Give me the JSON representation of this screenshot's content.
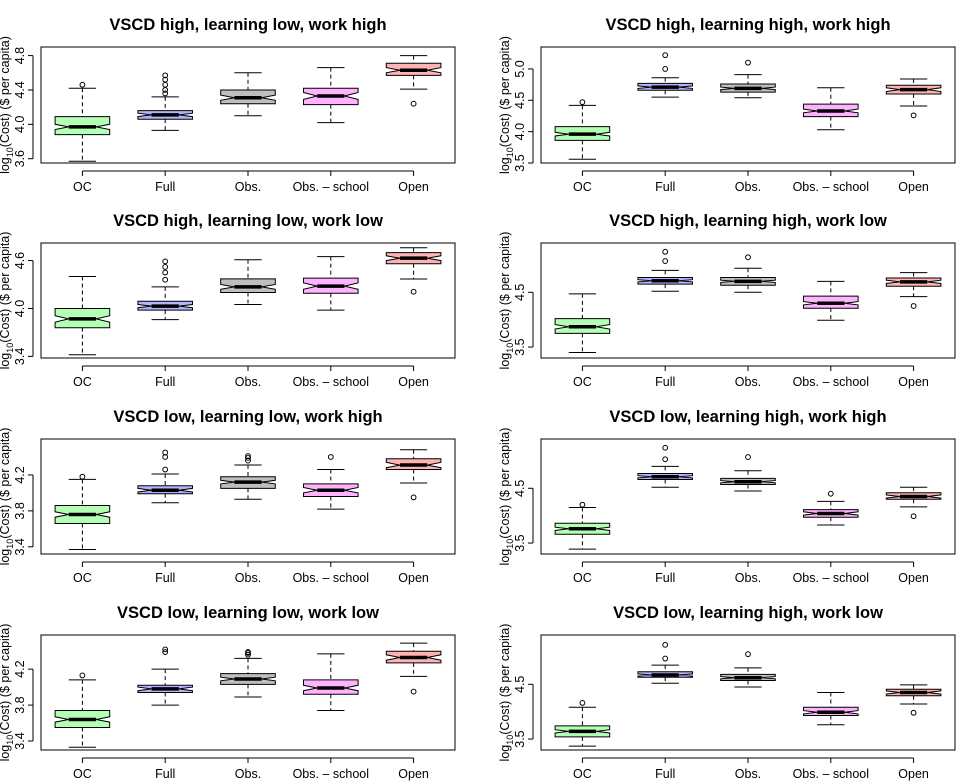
{
  "chart_data": [
    {
      "type": "box",
      "title": "VSCD high, learning low, work high",
      "ylabel_prefix": "log",
      "ylabel_sub": "10",
      "ylabel_suffix": "(Cost) ($ per capita)",
      "categories": [
        "OC",
        "Full",
        "Obs.",
        "Obs. – school",
        "Open"
      ],
      "colors": [
        "#b3ffb3",
        "#b3b3ff",
        "#bebebe",
        "#ffb3ff",
        "#ffb3b3"
      ],
      "notched": true,
      "ylim": [
        3.55,
        4.9
      ],
      "yticks": [
        3.6,
        4.0,
        4.4,
        4.8
      ],
      "yticklabels": [
        "3.6",
        "4.0",
        "4.4",
        "4.8"
      ],
      "boxes": [
        {
          "whislo": 3.57,
          "q1": 3.88,
          "med": 3.97,
          "q3": 4.09,
          "whishi": 4.42,
          "notch": [
            3.94,
            4.0
          ],
          "outliers": [
            4.46
          ]
        },
        {
          "whislo": 3.93,
          "q1": 4.06,
          "med": 4.11,
          "q3": 4.16,
          "whishi": 4.32,
          "notch": [
            4.09,
            4.13
          ],
          "outliers": [
            4.36,
            4.4,
            4.46,
            4.52,
            4.57
          ]
        },
        {
          "whislo": 4.1,
          "q1": 4.24,
          "med": 4.31,
          "q3": 4.4,
          "whishi": 4.6,
          "notch": [
            4.28,
            4.34
          ],
          "outliers": []
        },
        {
          "whislo": 4.02,
          "q1": 4.23,
          "med": 4.33,
          "q3": 4.42,
          "whishi": 4.66,
          "notch": [
            4.29,
            4.37
          ],
          "outliers": []
        },
        {
          "whislo": 4.41,
          "q1": 4.57,
          "med": 4.63,
          "q3": 4.71,
          "whishi": 4.8,
          "notch": [
            4.6,
            4.66
          ],
          "outliers": [
            4.24
          ]
        }
      ]
    },
    {
      "type": "box",
      "title": "VSCD high, learning high, work high",
      "ylabel_prefix": "log",
      "ylabel_sub": "10",
      "ylabel_suffix": "(Cost) ($ per capita)",
      "categories": [
        "OC",
        "Full",
        "Obs.",
        "Obs. – school",
        "Open"
      ],
      "colors": [
        "#b3ffb3",
        "#b3b3ff",
        "#bebebe",
        "#ffb3ff",
        "#ffb3b3"
      ],
      "notched": true,
      "ylim": [
        3.5,
        5.35
      ],
      "yticks": [
        3.5,
        4.0,
        4.5,
        5.0
      ],
      "yticklabels": [
        "3.5",
        "4.0",
        "4.5",
        "5.0"
      ],
      "boxes": [
        {
          "whislo": 3.56,
          "q1": 3.86,
          "med": 3.96,
          "q3": 4.08,
          "whishi": 4.42,
          "notch": [
            3.93,
            3.99
          ],
          "outliers": [
            4.47
          ]
        },
        {
          "whislo": 4.55,
          "q1": 4.66,
          "med": 4.71,
          "q3": 4.77,
          "whishi": 4.86,
          "notch": [
            4.69,
            4.73
          ],
          "outliers": [
            5.0,
            5.22
          ]
        },
        {
          "whislo": 4.54,
          "q1": 4.63,
          "med": 4.69,
          "q3": 4.76,
          "whishi": 4.91,
          "notch": [
            4.67,
            4.71
          ],
          "outliers": [
            5.1
          ]
        },
        {
          "whislo": 4.03,
          "q1": 4.24,
          "med": 4.33,
          "q3": 4.44,
          "whishi": 4.7,
          "notch": [
            4.3,
            4.36
          ],
          "outliers": []
        },
        {
          "whislo": 4.41,
          "q1": 4.6,
          "med": 4.67,
          "q3": 4.74,
          "whishi": 4.84,
          "notch": [
            4.64,
            4.7
          ],
          "outliers": [
            4.26
          ]
        }
      ]
    },
    {
      "type": "box",
      "title": "VSCD high, learning low, work low",
      "ylabel_prefix": "log",
      "ylabel_sub": "10",
      "ylabel_suffix": "(Cost) ($ per capita)",
      "categories": [
        "OC",
        "Full",
        "Obs.",
        "Obs. – school",
        "Open"
      ],
      "colors": [
        "#b3ffb3",
        "#b3b3ff",
        "#bebebe",
        "#ffb3ff",
        "#ffb3b3"
      ],
      "notched": true,
      "ylim": [
        3.38,
        4.82
      ],
      "yticks": [
        3.4,
        4.0,
        4.6
      ],
      "yticklabels": [
        "3.4",
        "4.0",
        "4.6"
      ],
      "boxes": [
        {
          "whislo": 3.42,
          "q1": 3.76,
          "med": 3.87,
          "q3": 4.0,
          "whishi": 4.4,
          "notch": [
            3.83,
            3.91
          ],
          "outliers": []
        },
        {
          "whislo": 3.86,
          "q1": 3.98,
          "med": 4.03,
          "q3": 4.09,
          "whishi": 4.27,
          "notch": [
            4.01,
            4.05
          ],
          "outliers": [
            4.36,
            4.45,
            4.52,
            4.59
          ]
        },
        {
          "whislo": 4.05,
          "q1": 4.2,
          "med": 4.27,
          "q3": 4.37,
          "whishi": 4.61,
          "notch": [
            4.24,
            4.3
          ],
          "outliers": []
        },
        {
          "whislo": 3.98,
          "q1": 4.19,
          "med": 4.28,
          "q3": 4.38,
          "whishi": 4.65,
          "notch": [
            4.24,
            4.32
          ],
          "outliers": []
        },
        {
          "whislo": 4.37,
          "q1": 4.56,
          "med": 4.63,
          "q3": 4.7,
          "whishi": 4.76,
          "notch": [
            4.6,
            4.66
          ],
          "outliers": [
            4.21
          ]
        }
      ]
    },
    {
      "type": "box",
      "title": "VSCD high, learning high, work low",
      "ylabel_prefix": "log",
      "ylabel_sub": "10",
      "ylabel_suffix": "(Cost) ($ per capita)",
      "categories": [
        "OC",
        "Full",
        "Obs.",
        "Obs. – school",
        "Open"
      ],
      "colors": [
        "#b3ffb3",
        "#b3b3ff",
        "#bebebe",
        "#ffb3ff",
        "#ffb3b3"
      ],
      "notched": true,
      "ylim": [
        3.3,
        5.4
      ],
      "yticks": [
        3.5,
        4.5
      ],
      "yticklabels": [
        "3.5",
        "4.5"
      ],
      "boxes": [
        {
          "whislo": 3.4,
          "q1": 3.75,
          "med": 3.87,
          "q3": 4.02,
          "whishi": 4.47,
          "notch": [
            3.83,
            3.91
          ],
          "outliers": []
        },
        {
          "whislo": 4.52,
          "q1": 4.65,
          "med": 4.71,
          "q3": 4.77,
          "whishi": 4.9,
          "notch": [
            4.69,
            4.73
          ],
          "outliers": [
            5.07,
            5.24
          ]
        },
        {
          "whislo": 4.5,
          "q1": 4.63,
          "med": 4.7,
          "q3": 4.77,
          "whishi": 4.94,
          "notch": [
            4.68,
            4.72
          ],
          "outliers": [
            5.14
          ]
        },
        {
          "whislo": 3.99,
          "q1": 4.21,
          "med": 4.3,
          "q3": 4.43,
          "whishi": 4.7,
          "notch": [
            4.27,
            4.33
          ],
          "outliers": []
        },
        {
          "whislo": 4.42,
          "q1": 4.61,
          "med": 4.69,
          "q3": 4.76,
          "whishi": 4.86,
          "notch": [
            4.66,
            4.72
          ],
          "outliers": [
            4.25
          ]
        }
      ]
    },
    {
      "type": "box",
      "title": "VSCD low, learning low, work high",
      "ylabel_prefix": "log",
      "ylabel_sub": "10",
      "ylabel_suffix": "(Cost) ($ per capita)",
      "categories": [
        "OC",
        "Full",
        "Obs.",
        "Obs. – school",
        "Open"
      ],
      "colors": [
        "#b3ffb3",
        "#b3b3ff",
        "#bebebe",
        "#ffb3ff",
        "#ffb3b3"
      ],
      "notched": true,
      "ylim": [
        3.32,
        4.6
      ],
      "yticks": [
        3.4,
        3.8,
        4.2
      ],
      "yticklabels": [
        "3.4",
        "3.8",
        "4.2"
      ],
      "boxes": [
        {
          "whislo": 3.37,
          "q1": 3.66,
          "med": 3.76,
          "q3": 3.86,
          "whishi": 4.15,
          "notch": [
            3.73,
            3.79
          ],
          "outliers": [
            4.18
          ]
        },
        {
          "whislo": 3.89,
          "q1": 3.99,
          "med": 4.03,
          "q3": 4.08,
          "whishi": 4.21,
          "notch": [
            4.01,
            4.05
          ],
          "outliers": [
            4.26,
            4.4,
            4.45
          ]
        },
        {
          "whislo": 3.93,
          "q1": 4.05,
          "med": 4.12,
          "q3": 4.18,
          "whishi": 4.31,
          "notch": [
            4.1,
            4.14
          ],
          "outliers": [
            4.36,
            4.39,
            4.41
          ]
        },
        {
          "whislo": 3.82,
          "q1": 3.96,
          "med": 4.03,
          "q3": 4.1,
          "whishi": 4.26,
          "notch": [
            4.0,
            4.06
          ],
          "outliers": [
            4.4
          ]
        },
        {
          "whislo": 4.11,
          "q1": 4.26,
          "med": 4.31,
          "q3": 4.38,
          "whishi": 4.48,
          "notch": [
            4.28,
            4.34
          ],
          "outliers": [
            3.95
          ]
        }
      ]
    },
    {
      "type": "box",
      "title": "VSCD low, learning high, work high",
      "ylabel_prefix": "log",
      "ylabel_sub": "10",
      "ylabel_suffix": "(Cost) ($ per capita)",
      "categories": [
        "OC",
        "Full",
        "Obs.",
        "Obs. – school",
        "Open"
      ],
      "colors": [
        "#b3ffb3",
        "#b3b3ff",
        "#bebebe",
        "#ffb3ff",
        "#ffb3b3"
      ],
      "notched": true,
      "ylim": [
        3.3,
        5.4
      ],
      "yticks": [
        3.5,
        4.5
      ],
      "yticklabels": [
        "3.5",
        "4.5"
      ],
      "boxes": [
        {
          "whislo": 3.39,
          "q1": 3.66,
          "med": 3.76,
          "q3": 3.86,
          "whishi": 4.15,
          "notch": [
            3.73,
            3.79
          ],
          "outliers": [
            4.2
          ]
        },
        {
          "whislo": 4.52,
          "q1": 4.66,
          "med": 4.71,
          "q3": 4.77,
          "whishi": 4.9,
          "notch": [
            4.69,
            4.73
          ],
          "outliers": [
            5.03,
            5.24
          ]
        },
        {
          "whislo": 4.45,
          "q1": 4.57,
          "med": 4.62,
          "q3": 4.68,
          "whishi": 4.82,
          "notch": [
            4.6,
            4.64
          ],
          "outliers": [
            5.07
          ]
        },
        {
          "whislo": 3.83,
          "q1": 3.97,
          "med": 4.04,
          "q3": 4.11,
          "whishi": 4.26,
          "notch": [
            4.01,
            4.07
          ],
          "outliers": [
            4.4
          ]
        },
        {
          "whislo": 4.16,
          "q1": 4.3,
          "med": 4.35,
          "q3": 4.42,
          "whishi": 4.52,
          "notch": [
            4.32,
            4.38
          ],
          "outliers": [
            3.99
          ]
        }
      ]
    },
    {
      "type": "box",
      "title": "VSCD low, learning low, work low",
      "ylabel_prefix": "log",
      "ylabel_sub": "10",
      "ylabel_suffix": "(Cost) ($ per capita)",
      "categories": [
        "OC",
        "Full",
        "Obs.",
        "Obs. – school",
        "Open"
      ],
      "colors": [
        "#b3ffb3",
        "#b3b3ff",
        "#bebebe",
        "#ffb3ff",
        "#ffb3b3"
      ],
      "notched": true,
      "ylim": [
        3.3,
        4.58
      ],
      "yticks": [
        3.4,
        3.8,
        4.2
      ],
      "yticklabels": [
        "3.4",
        "3.8",
        "4.2"
      ],
      "boxes": [
        {
          "whislo": 3.33,
          "q1": 3.55,
          "med": 3.64,
          "q3": 3.74,
          "whishi": 4.08,
          "notch": [
            3.61,
            3.67
          ],
          "outliers": [
            4.13
          ]
        },
        {
          "whislo": 3.8,
          "q1": 3.94,
          "med": 3.98,
          "q3": 4.02,
          "whishi": 4.2,
          "notch": [
            3.96,
            4.0
          ],
          "outliers": [
            4.39,
            4.42
          ]
        },
        {
          "whislo": 3.89,
          "q1": 4.03,
          "med": 4.09,
          "q3": 4.15,
          "whishi": 4.32,
          "notch": [
            4.07,
            4.11
          ],
          "outliers": [
            4.36,
            4.38,
            4.39
          ]
        },
        {
          "whislo": 3.74,
          "q1": 3.92,
          "med": 3.99,
          "q3": 4.08,
          "whishi": 4.37,
          "notch": [
            3.96,
            4.02
          ],
          "outliers": []
        },
        {
          "whislo": 4.12,
          "q1": 4.27,
          "med": 4.33,
          "q3": 4.4,
          "whishi": 4.49,
          "notch": [
            4.3,
            4.36
          ],
          "outliers": [
            3.95
          ]
        }
      ]
    },
    {
      "type": "box",
      "title": "VSCD low, learning high, work low",
      "ylabel_prefix": "log",
      "ylabel_sub": "10",
      "ylabel_suffix": "(Cost) ($ per capita)",
      "categories": [
        "OC",
        "Full",
        "Obs.",
        "Obs. – school",
        "Open"
      ],
      "colors": [
        "#b3ffb3",
        "#b3b3ff",
        "#bebebe",
        "#ffb3ff",
        "#ffb3b3"
      ],
      "notched": true,
      "ylim": [
        3.3,
        5.4
      ],
      "yticks": [
        3.5,
        4.5
      ],
      "yticklabels": [
        "3.5",
        "4.5"
      ],
      "boxes": [
        {
          "whislo": 3.37,
          "q1": 3.54,
          "med": 3.64,
          "q3": 3.74,
          "whishi": 4.08,
          "notch": [
            3.61,
            3.67
          ],
          "outliers": [
            4.16
          ]
        },
        {
          "whislo": 4.52,
          "q1": 4.63,
          "med": 4.67,
          "q3": 4.73,
          "whishi": 4.85,
          "notch": [
            4.65,
            4.69
          ],
          "outliers": [
            4.97,
            5.22
          ]
        },
        {
          "whislo": 4.45,
          "q1": 4.57,
          "med": 4.62,
          "q3": 4.68,
          "whishi": 4.8,
          "notch": [
            4.6,
            4.64
          ],
          "outliers": [
            5.05
          ]
        },
        {
          "whislo": 3.76,
          "q1": 3.93,
          "med": 3.99,
          "q3": 4.08,
          "whishi": 4.35,
          "notch": [
            3.96,
            4.02
          ],
          "outliers": []
        },
        {
          "whislo": 4.14,
          "q1": 4.29,
          "med": 4.35,
          "q3": 4.41,
          "whishi": 4.49,
          "notch": [
            4.32,
            4.38
          ],
          "outliers": [
            3.98
          ]
        }
      ]
    }
  ]
}
